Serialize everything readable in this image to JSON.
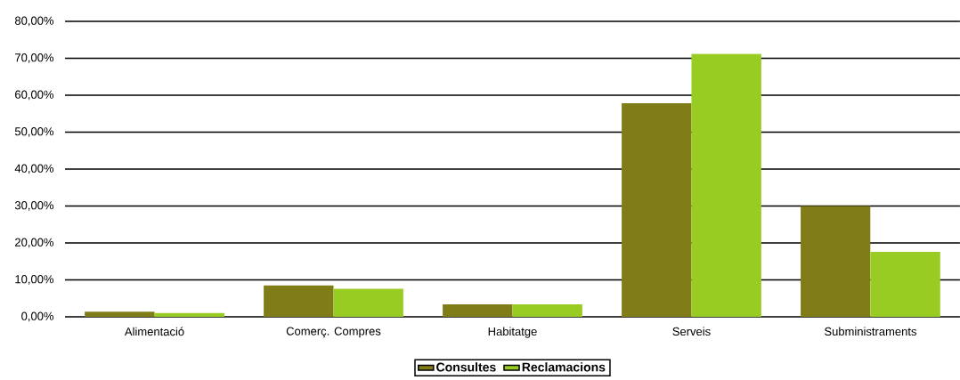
{
  "chart_data": {
    "type": "bar",
    "categories": [
      "Alimentació",
      "Comerç. Compres",
      "Habitatge",
      "Serveis",
      "Subministraments"
    ],
    "series": [
      {
        "name": "Consultes",
        "color": "#807d19",
        "values": [
          1.4,
          8.5,
          3.4,
          57.8,
          30.0
        ]
      },
      {
        "name": "Reclamacions",
        "color": "#99cc22",
        "values": [
          1.0,
          7.6,
          3.4,
          71.2,
          17.6
        ]
      }
    ],
    "ylim": [
      0,
      80
    ],
    "yticks": [
      {
        "value": 0,
        "label": "0,00%"
      },
      {
        "value": 10,
        "label": "10,00%"
      },
      {
        "value": 20,
        "label": "20,00%"
      },
      {
        "value": 30,
        "label": "30,00%"
      },
      {
        "value": 40,
        "label": "40,00%"
      },
      {
        "value": 50,
        "label": "50,00%"
      },
      {
        "value": 60,
        "label": "60,00%"
      },
      {
        "value": 70,
        "label": "70,00%"
      },
      {
        "value": 80,
        "label": "80,00%"
      }
    ],
    "grid": "y",
    "legend": "bottom"
  }
}
